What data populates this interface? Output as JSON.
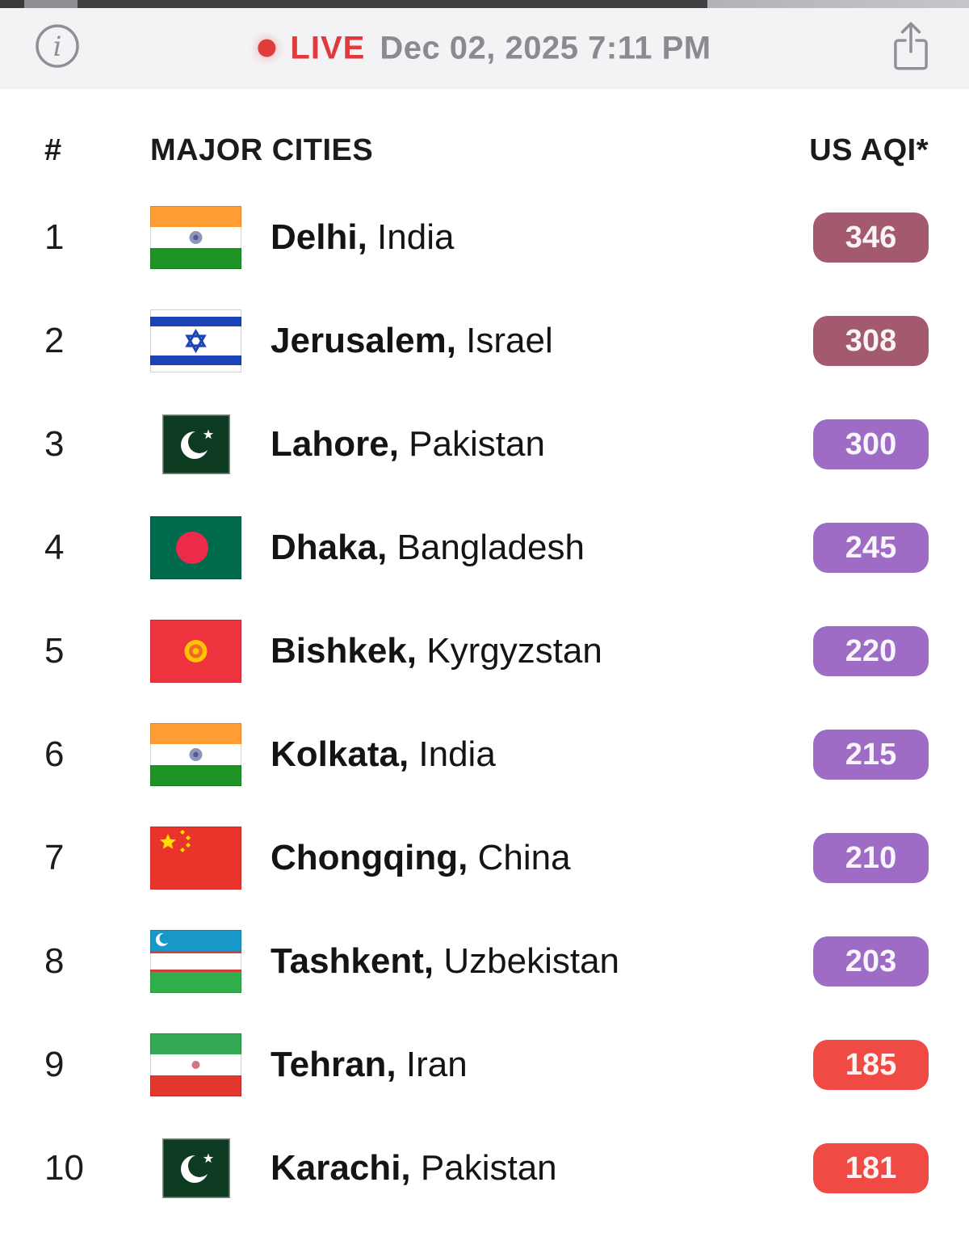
{
  "top_bar": {
    "live_label": "LIVE",
    "timestamp": "Dec 02, 2025 7:11 PM",
    "live_color": "#e03a3f"
  },
  "table": {
    "rank_header": "#",
    "cities_header": "MAJOR CITIES",
    "aqi_header": "US AQI*",
    "rows": [
      {
        "rank": "1",
        "city": "Delhi",
        "country": "India",
        "flag": "in",
        "aqi": "346",
        "level": "hazardous"
      },
      {
        "rank": "2",
        "city": "Jerusalem",
        "country": "Israel",
        "flag": "il",
        "aqi": "308",
        "level": "hazardous"
      },
      {
        "rank": "3",
        "city": "Lahore",
        "country": "Pakistan",
        "flag": "pk",
        "aqi": "300",
        "level": "very_unhealthy"
      },
      {
        "rank": "4",
        "city": "Dhaka",
        "country": "Bangladesh",
        "flag": "bd",
        "aqi": "245",
        "level": "very_unhealthy"
      },
      {
        "rank": "5",
        "city": "Bishkek",
        "country": "Kyrgyzstan",
        "flag": "kg",
        "aqi": "220",
        "level": "very_unhealthy"
      },
      {
        "rank": "6",
        "city": "Kolkata",
        "country": "India",
        "flag": "in",
        "aqi": "215",
        "level": "very_unhealthy"
      },
      {
        "rank": "7",
        "city": "Chongqing",
        "country": "China",
        "flag": "cn",
        "aqi": "210",
        "level": "very_unhealthy"
      },
      {
        "rank": "8",
        "city": "Tashkent",
        "country": "Uzbekistan",
        "flag": "uz",
        "aqi": "203",
        "level": "very_unhealthy"
      },
      {
        "rank": "9",
        "city": "Tehran",
        "country": "Iran",
        "flag": "ir",
        "aqi": "185",
        "level": "unhealthy"
      },
      {
        "rank": "10",
        "city": "Karachi",
        "country": "Pakistan",
        "flag": "pk",
        "aqi": "181",
        "level": "unhealthy"
      }
    ]
  },
  "aqi_colors": {
    "hazardous": "#a35a6e",
    "very_unhealthy": "#9e6cc5",
    "unhealthy": "#ef4b44"
  }
}
